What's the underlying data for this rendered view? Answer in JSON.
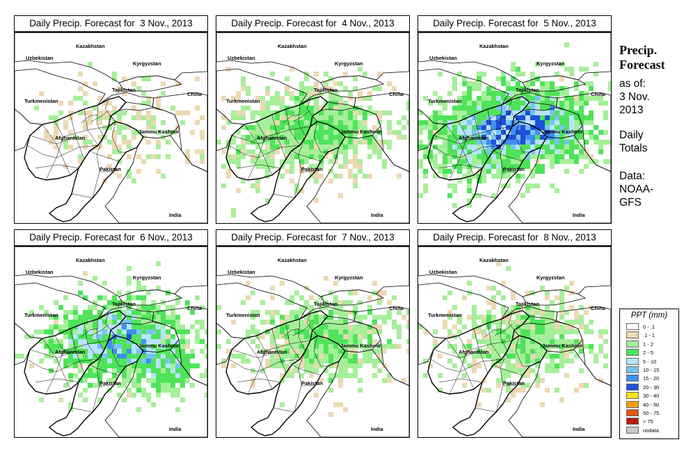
{
  "panels": [
    {
      "title": "Daily Precip. Forecast for  3 Nov., 2013",
      "day": 3
    },
    {
      "title": "Daily Precip. Forecast for  4 Nov., 2013",
      "day": 4
    },
    {
      "title": "Daily Precip. Forecast for  5 Nov., 2013",
      "day": 5
    },
    {
      "title": "Daily Precip. Forecast for  6 Nov., 2013",
      "day": 6
    },
    {
      "title": "Daily Precip. Forecast for  7 Nov., 2013",
      "day": 7
    },
    {
      "title": "Daily Precip. Forecast for  8 Nov., 2013",
      "day": 8
    }
  ],
  "place_labels": [
    "Kazakhstan",
    "Uzbekistan",
    "Kyrgyzstan",
    "Tajikistan",
    "China",
    "Turkmenistan",
    "Jammu Kashmir",
    "Afghanistan",
    "Pakistan",
    "India"
  ],
  "side": {
    "title_line1": "Precip.",
    "title_line2": "Forecast",
    "as_of_label": "as of:",
    "as_of_date_line1": "3 Nov.",
    "as_of_date_line2": "2013",
    "totals_line1": "Daily",
    "totals_line2": "Totals",
    "data_label": "Data:",
    "data_source_line1": "NOAA-",
    "data_source_line2": "GFS"
  },
  "legend": {
    "title": "PPT (mm)",
    "items": [
      {
        "label": "0 - .1",
        "color": "#ffffff"
      },
      {
        "label": ".1 - 1",
        "color": "#ecd9b4"
      },
      {
        "label": "1 - 2",
        "color": "#a6ef9a"
      },
      {
        "label": "2 - 5",
        "color": "#4fe35a"
      },
      {
        "label": "5 - 10",
        "color": "#b9e3ff"
      },
      {
        "label": "10 - 15",
        "color": "#78c4f5"
      },
      {
        "label": "15 - 20",
        "color": "#3f8ef0"
      },
      {
        "label": "20 - 30",
        "color": "#1f50d8"
      },
      {
        "label": "30 - 40",
        "color": "#f7e31c"
      },
      {
        "label": "40 - 50",
        "color": "#f7a00d"
      },
      {
        "label": "50 - 75",
        "color": "#e45512"
      },
      {
        "label": "> 75",
        "color": "#b41c12"
      },
      {
        "label": "nodata",
        "color": "#c8c8c8"
      }
    ]
  },
  "boundary_color": "#000000",
  "precip_intensity_by_day": {
    "3": {
      "coverage": 0.2,
      "intensity": 0.15
    },
    "4": {
      "coverage": 0.45,
      "intensity": 0.4
    },
    "5": {
      "coverage": 0.7,
      "intensity": 0.85
    },
    "6": {
      "coverage": 0.55,
      "intensity": 0.95
    },
    "7": {
      "coverage": 0.45,
      "intensity": 0.45
    },
    "8": {
      "coverage": 0.4,
      "intensity": 0.4
    }
  }
}
